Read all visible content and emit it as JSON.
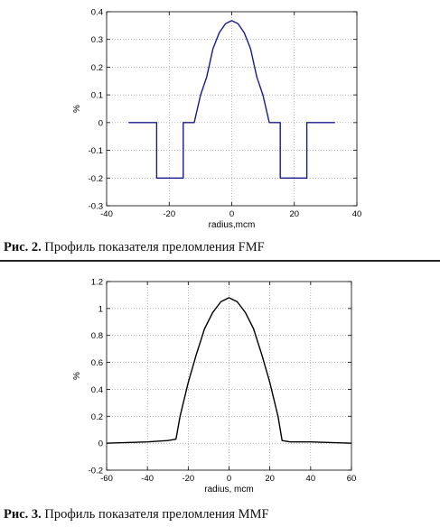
{
  "chart_data": [
    {
      "type": "line",
      "title": "",
      "xlabel": "radius,mcm",
      "ylabel": "%",
      "xlim": [
        -40,
        40
      ],
      "ylim": [
        -0.3,
        0.4
      ],
      "xticks": [
        -40,
        -20,
        0,
        20,
        40
      ],
      "yticks": [
        -0.3,
        -0.2,
        -0.1,
        0,
        0.1,
        0.2,
        0.3,
        0.4
      ],
      "grid": true,
      "line_color": "#1a1a8c",
      "series": [
        {
          "x": [
            -33,
            -24,
            -24,
            -15.5,
            -15.5,
            -12,
            -10,
            -8,
            -6,
            -4,
            -2,
            0,
            2,
            4,
            6,
            8,
            10,
            12,
            15.5,
            15.5,
            24,
            24,
            33
          ],
          "y": [
            0,
            0,
            -0.2,
            -0.2,
            0,
            0,
            0.098,
            0.165,
            0.267,
            0.324,
            0.357,
            0.368,
            0.357,
            0.324,
            0.267,
            0.165,
            0.098,
            0,
            0,
            -0.2,
            -0.2,
            0,
            0
          ]
        }
      ]
    },
    {
      "type": "line",
      "title": "",
      "xlabel": "radius, mcm",
      "ylabel": "%",
      "xlim": [
        -60,
        60
      ],
      "ylim": [
        -0.2,
        1.2
      ],
      "xticks": [
        -60,
        -40,
        -20,
        0,
        20,
        40,
        60
      ],
      "yticks": [
        -0.2,
        0,
        0.2,
        0.4,
        0.6,
        0.8,
        1,
        1.2
      ],
      "grid": true,
      "line_color": "#000000",
      "series": [
        {
          "x": [
            -60,
            -50,
            -40,
            -30,
            -26,
            -24,
            -20,
            -16,
            -12,
            -8,
            -4,
            0,
            4,
            8,
            12,
            16,
            20,
            24,
            26,
            30,
            40,
            50,
            60
          ],
          "y": [
            0.0,
            0.005,
            0.01,
            0.02,
            0.03,
            0.2,
            0.45,
            0.66,
            0.85,
            0.97,
            1.05,
            1.08,
            1.05,
            0.97,
            0.85,
            0.66,
            0.45,
            0.2,
            0.02,
            0.01,
            0.01,
            0.005,
            0.0
          ]
        }
      ]
    }
  ],
  "captions": [
    {
      "label": "Рис. 2.",
      "text": " Профиль показателя преломления FMF"
    },
    {
      "label": "Рис. 3.",
      "text": " Профиль показателя преломления MMF"
    }
  ]
}
